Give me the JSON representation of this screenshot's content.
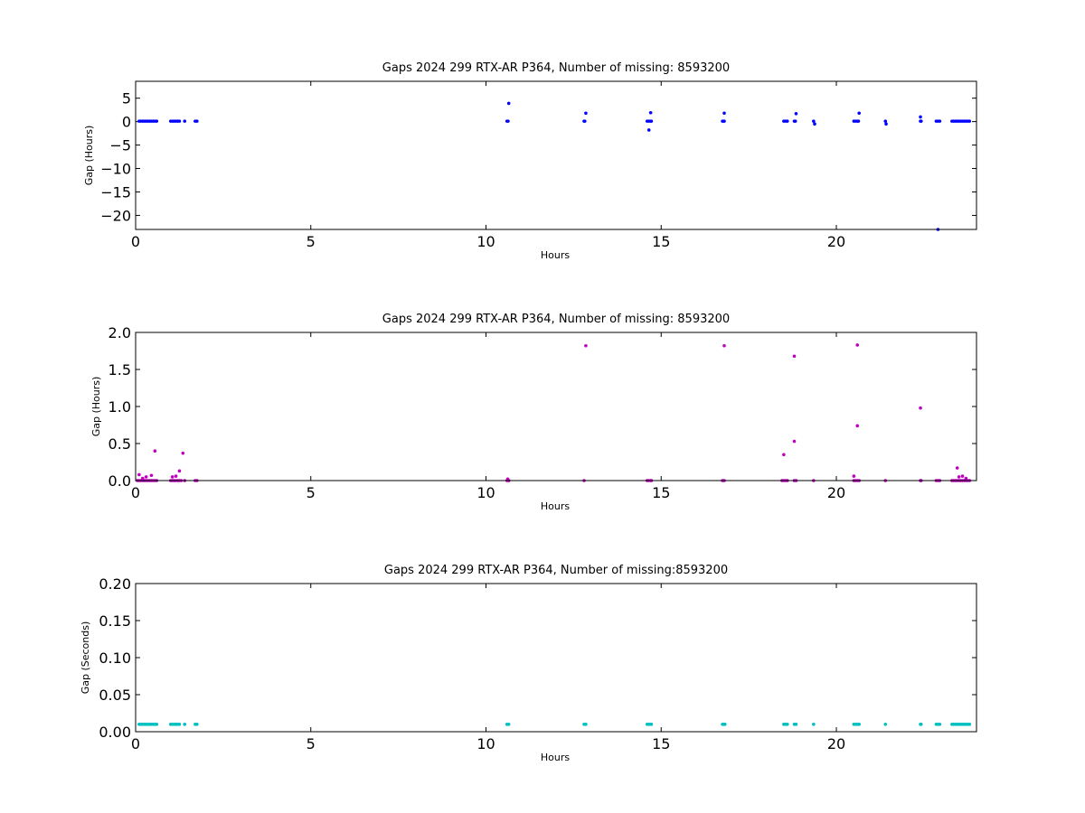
{
  "chart_data": [
    {
      "type": "scatter",
      "title": "Gaps 2024 299 RTX-AR  P364, Number of missing: 8593200",
      "xlabel": "Hours",
      "ylabel": "Gap (Hours)",
      "xlim": [
        0,
        24
      ],
      "ylim": [
        -23,
        8.6
      ],
      "xticks": [
        0,
        5,
        10,
        15,
        20
      ],
      "xtick_labels": [
        "0",
        "5",
        "10",
        "15",
        "20"
      ],
      "yticks": [
        -20,
        -15,
        -10,
        -5,
        0,
        5
      ],
      "ytick_labels": [
        "−20",
        "−15",
        "−10",
        "−5",
        "0",
        "5"
      ],
      "grid": false,
      "color": "#0000ff",
      "series": [
        {
          "x": [
            0.1,
            0.15,
            0.2,
            0.25,
            0.3,
            0.35,
            0.4,
            0.45,
            0.5,
            0.55,
            0.6,
            1.0,
            1.05,
            1.1,
            1.15,
            1.2,
            1.25,
            1.4,
            1.7,
            1.75,
            10.6,
            10.63,
            10.65,
            12.8,
            12.82,
            12.85,
            14.6,
            14.65,
            14.7,
            14.72,
            14.65,
            14.7,
            16.75,
            16.78,
            16.8,
            16.8,
            18.5,
            18.55,
            18.6,
            18.8,
            18.83,
            18.85,
            19.35,
            19.38,
            20.5,
            20.55,
            20.6,
            20.63,
            20.65,
            21.4,
            21.42,
            22.4,
            22.42,
            22.4,
            22.85,
            22.9,
            22.95,
            22.9,
            23.3,
            23.35,
            23.4,
            23.45,
            23.5,
            23.55,
            23.6,
            23.65,
            23.7,
            23.75,
            23.8
          ],
          "y": [
            0.1,
            0.1,
            0.1,
            0.1,
            0.1,
            0.1,
            0.1,
            0.1,
            0.1,
            0.1,
            0.1,
            0.1,
            0.1,
            0.1,
            0.1,
            0.1,
            0.1,
            0.1,
            0.1,
            0.1,
            0.1,
            0.1,
            3.9,
            0.1,
            0.1,
            1.8,
            0.1,
            0.1,
            0.1,
            0.1,
            -1.8,
            1.9,
            0.1,
            0.1,
            0.1,
            1.8,
            0.1,
            0.1,
            0.1,
            0.1,
            0.1,
            1.7,
            0.1,
            -0.5,
            0.1,
            0.1,
            0.1,
            0.1,
            1.8,
            0.1,
            -0.5,
            0.1,
            0.1,
            1.0,
            0.1,
            0.1,
            0.1,
            -23.0,
            0.1,
            0.1,
            0.1,
            0.1,
            0.1,
            0.1,
            0.1,
            0.1,
            0.1,
            0.1,
            0.1
          ]
        }
      ]
    },
    {
      "type": "scatter",
      "title": "Gaps 2024 299 RTX-AR  P364, Number of missing: 8593200",
      "xlabel": "Hours",
      "ylabel": "Gap (Hours)",
      "xlim": [
        0,
        24
      ],
      "ylim": [
        0,
        2.0
      ],
      "xticks": [
        0,
        5,
        10,
        15,
        20
      ],
      "xtick_labels": [
        "0",
        "5",
        "10",
        "15",
        "20"
      ],
      "yticks": [
        0,
        0.5,
        1.0,
        1.5,
        2.0
      ],
      "ytick_labels": [
        "0.0",
        "0.5",
        "1.0",
        "1.5",
        "2.0"
      ],
      "grid": false,
      "color": "#bf00bf",
      "series": [
        {
          "x": [
            0.05,
            0.1,
            0.15,
            0.2,
            0.25,
            0.3,
            0.35,
            0.4,
            0.45,
            0.5,
            0.55,
            0.6,
            0.1,
            0.2,
            0.3,
            0.45,
            0.55,
            1.0,
            1.05,
            1.1,
            1.15,
            1.2,
            1.25,
            1.3,
            1.05,
            1.15,
            1.25,
            1.35,
            1.4,
            1.7,
            1.75,
            10.6,
            10.62,
            10.65,
            12.8,
            12.85,
            14.6,
            14.65,
            14.7,
            14.72,
            16.75,
            16.8,
            16.8,
            18.45,
            18.5,
            18.55,
            18.6,
            18.5,
            18.8,
            18.85,
            18.8,
            18.8,
            19.35,
            20.5,
            20.55,
            20.6,
            20.65,
            20.5,
            20.6,
            20.6,
            21.4,
            22.4,
            22.42,
            22.4,
            22.85,
            22.9,
            22.95,
            23.3,
            23.35,
            23.4,
            23.45,
            23.5,
            23.55,
            23.6,
            23.65,
            23.7,
            23.75,
            23.8,
            23.45,
            23.5,
            23.6,
            23.7
          ],
          "y": [
            0.0,
            0.0,
            0.0,
            0.0,
            0.0,
            0.0,
            0.0,
            0.0,
            0.0,
            0.0,
            0.0,
            0.0,
            0.08,
            0.03,
            0.05,
            0.07,
            0.4,
            0.0,
            0.0,
            0.0,
            0.0,
            0.0,
            0.0,
            0.0,
            0.05,
            0.06,
            0.13,
            0.37,
            0.0,
            0.0,
            0.0,
            0.0,
            0.02,
            0.0,
            0.0,
            1.82,
            0.0,
            0.0,
            0.0,
            0.0,
            0.0,
            0.0,
            1.82,
            0.0,
            0.35,
            0.0,
            0.0,
            0.0,
            0.0,
            0.0,
            0.53,
            1.68,
            0.0,
            0.0,
            0.0,
            0.0,
            0.0,
            0.06,
            0.74,
            1.83,
            0.0,
            0.0,
            0.0,
            0.98,
            0.0,
            0.0,
            0.0,
            0.0,
            0.0,
            0.0,
            0.0,
            0.0,
            0.0,
            0.0,
            0.0,
            0.0,
            0.0,
            0.0,
            0.17,
            0.05,
            0.06,
            0.03
          ]
        }
      ]
    },
    {
      "type": "scatter",
      "title": "Gaps 2024 299 RTX-AR  P364, Number of missing:8593200",
      "xlabel": "Hours",
      "ylabel": "Gap (Seconds)",
      "xlim": [
        0,
        24
      ],
      "ylim": [
        0,
        0.2
      ],
      "xticks": [
        0,
        5,
        10,
        15,
        20
      ],
      "xtick_labels": [
        "0",
        "5",
        "10",
        "15",
        "20"
      ],
      "yticks": [
        0,
        0.05,
        0.1,
        0.15,
        0.2
      ],
      "ytick_labels": [
        "0.00",
        "0.05",
        "0.10",
        "0.15",
        "0.20"
      ],
      "grid": false,
      "color": "#00bfbf",
      "series": [
        {
          "x": [
            0.1,
            0.15,
            0.2,
            0.25,
            0.3,
            0.35,
            0.4,
            0.45,
            0.5,
            0.55,
            0.6,
            1.0,
            1.05,
            1.1,
            1.15,
            1.2,
            1.25,
            1.4,
            1.7,
            1.75,
            10.6,
            10.65,
            12.8,
            12.85,
            14.6,
            14.65,
            14.7,
            14.72,
            16.75,
            16.8,
            16.82,
            18.5,
            18.55,
            18.6,
            18.8,
            18.85,
            19.35,
            20.5,
            20.55,
            20.6,
            20.65,
            21.4,
            22.4,
            22.42,
            22.85,
            22.9,
            22.95,
            23.3,
            23.35,
            23.4,
            23.45,
            23.5,
            23.55,
            23.6,
            23.65,
            23.7,
            23.75,
            23.8
          ],
          "y": [
            0.01,
            0.01,
            0.01,
            0.01,
            0.01,
            0.01,
            0.01,
            0.01,
            0.01,
            0.01,
            0.01,
            0.01,
            0.01,
            0.01,
            0.01,
            0.01,
            0.01,
            0.01,
            0.01,
            0.01,
            0.01,
            0.01,
            0.01,
            0.01,
            0.01,
            0.01,
            0.01,
            0.01,
            0.01,
            0.01,
            0.01,
            0.01,
            0.01,
            0.01,
            0.01,
            0.01,
            0.01,
            0.01,
            0.01,
            0.01,
            0.01,
            0.01,
            0.01,
            0.01,
            0.01,
            0.01,
            0.01,
            0.01,
            0.01,
            0.01,
            0.01,
            0.01,
            0.01,
            0.01,
            0.01,
            0.01,
            0.01,
            0.01
          ]
        }
      ]
    }
  ]
}
